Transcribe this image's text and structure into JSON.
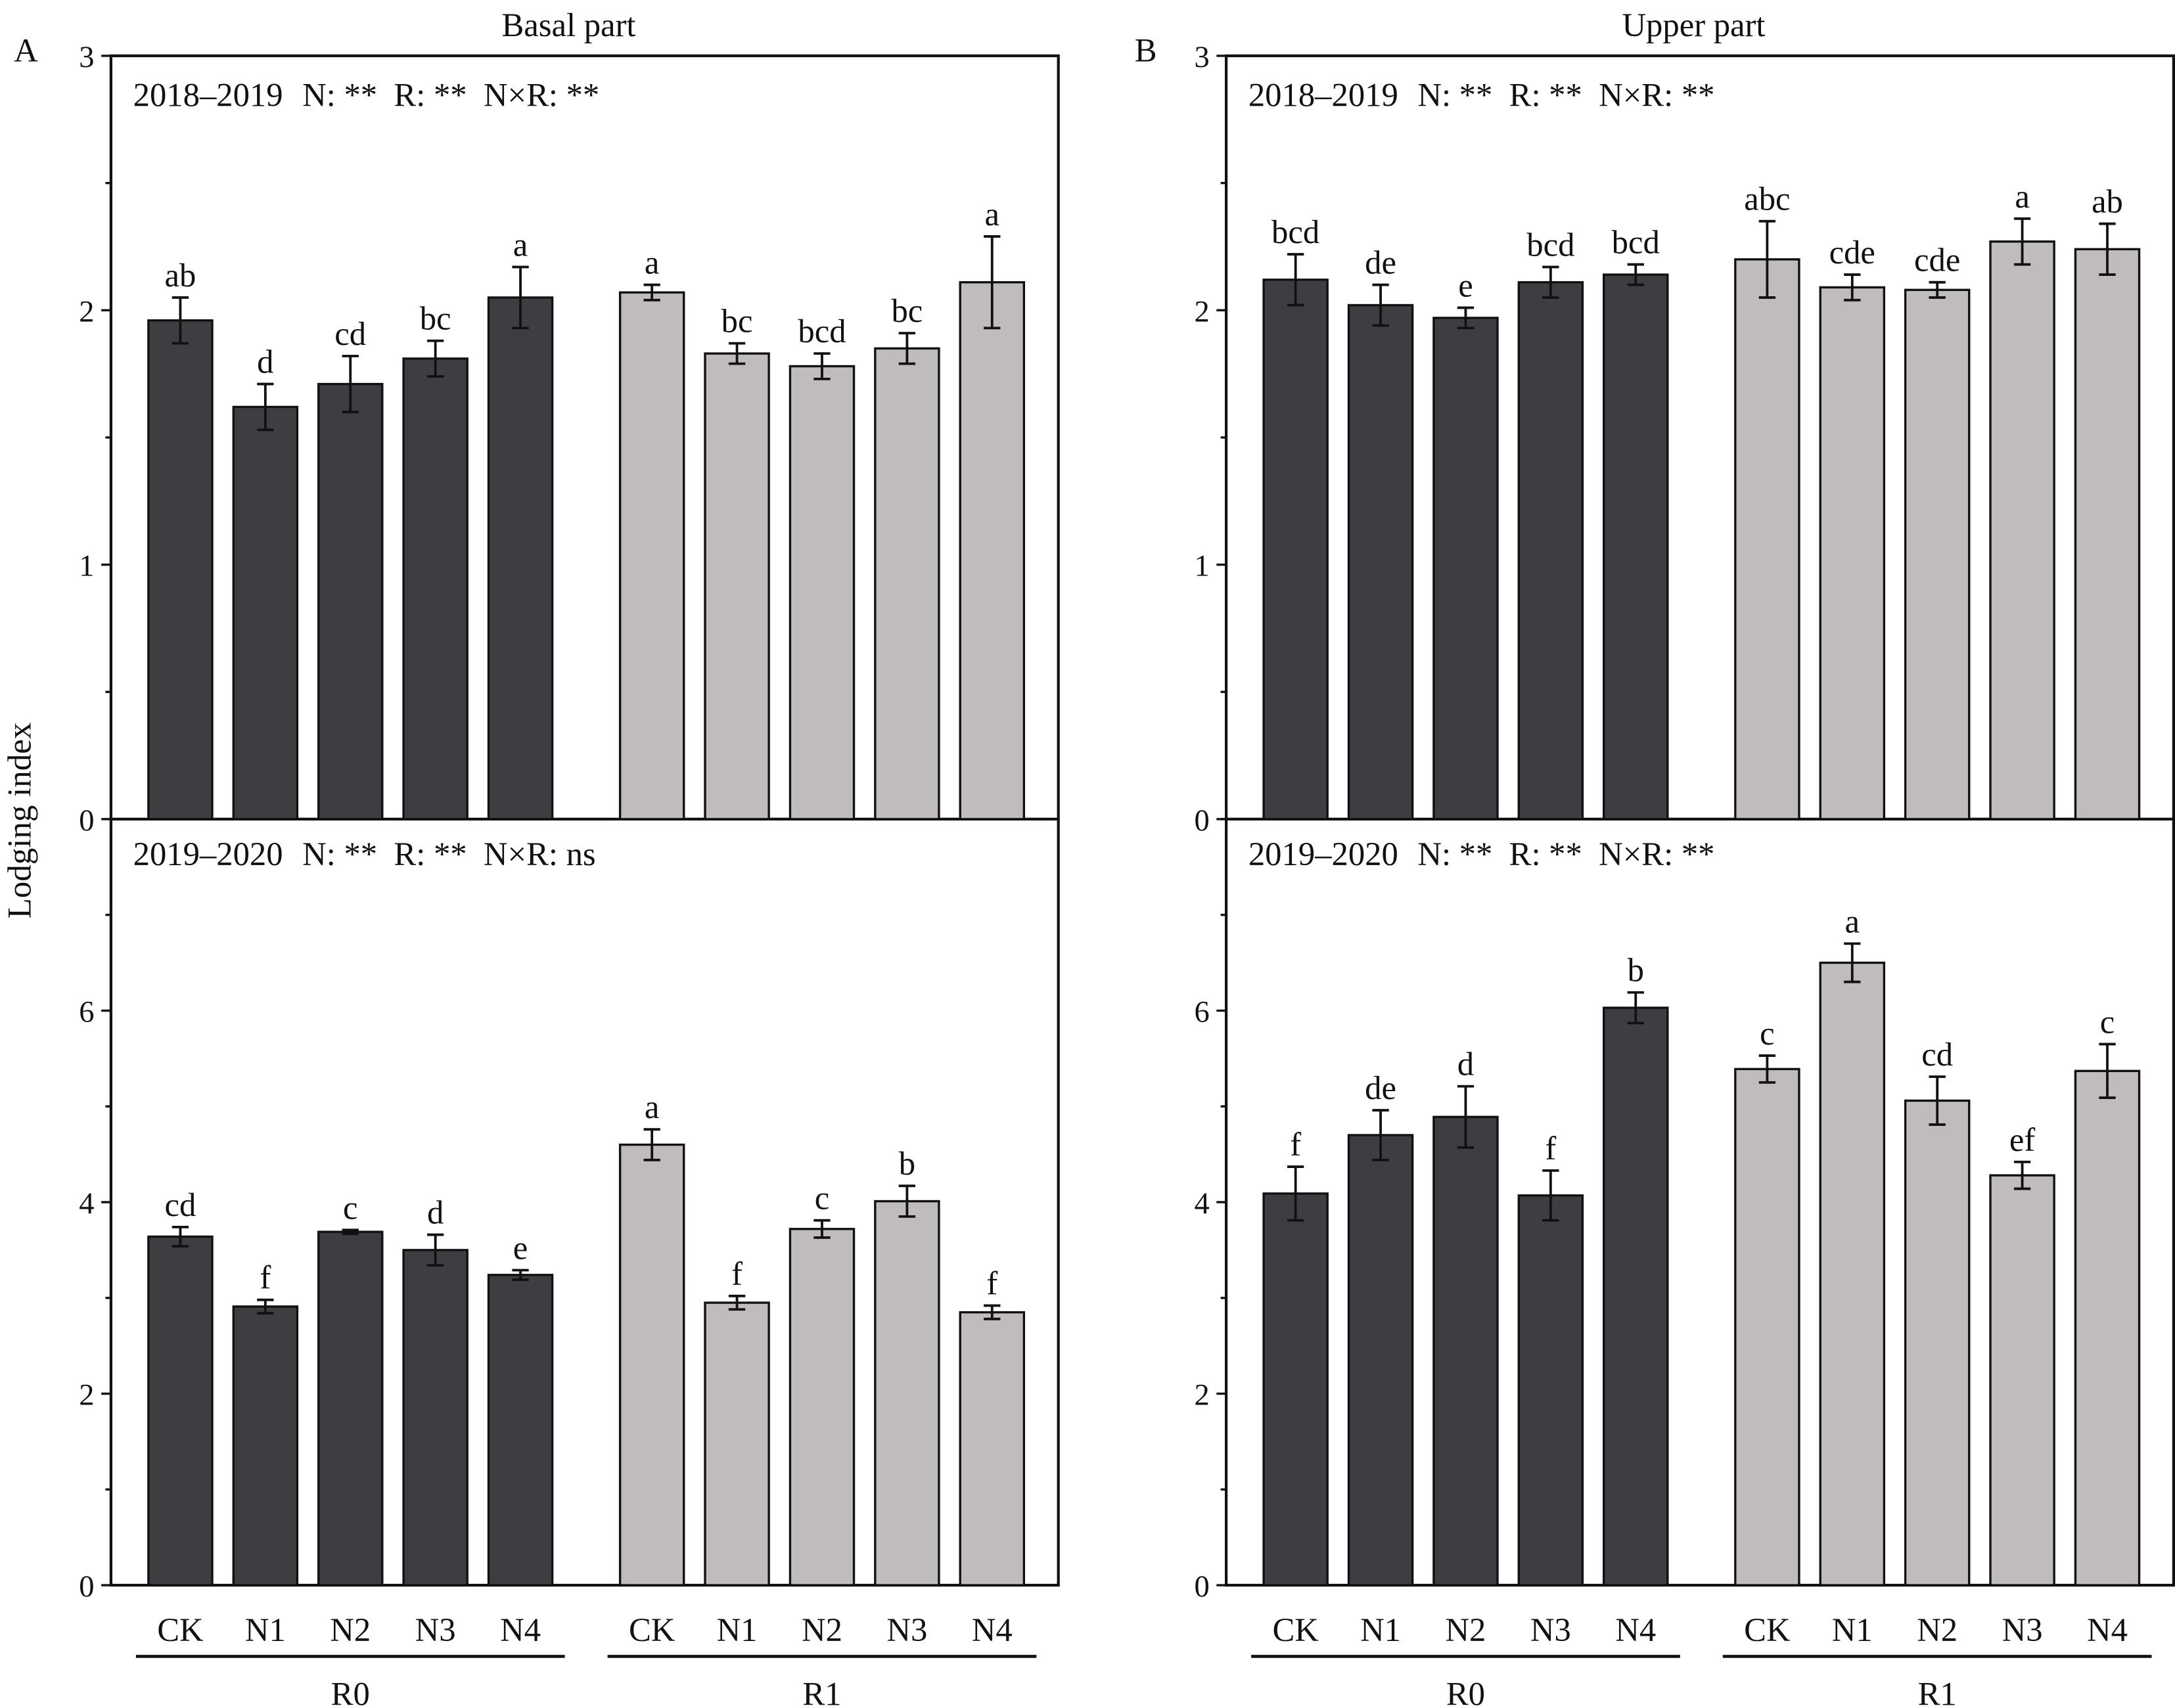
{
  "figure": {
    "y_axis_label": "Lodging index",
    "colors": {
      "R0": "#3f3d41",
      "R1": "#c0bbbf",
      "axis": "#111111"
    }
  },
  "chart_data": [
    {
      "id": "A",
      "type": "bar",
      "panel_letter": "A",
      "title": "Basal part",
      "ylabel": "Lodging index",
      "groups": [
        {
          "name": "R0",
          "categories": [
            "CK",
            "N1",
            "N2",
            "N3",
            "N4"
          ]
        },
        {
          "name": "R1",
          "categories": [
            "CK",
            "N1",
            "N2",
            "N3",
            "N4"
          ]
        }
      ],
      "subplots": [
        {
          "year": "2018–2019",
          "stats": "N: **  R: **  N×R: **",
          "ylim": [
            0,
            3
          ],
          "major_ticks": [
            0,
            1,
            2,
            3
          ],
          "series": [
            {
              "name": "R0",
              "values": [
                1.96,
                1.62,
                1.71,
                1.81,
                2.05
              ],
              "errors": [
                0.09,
                0.09,
                0.11,
                0.07,
                0.12
              ],
              "letters": [
                "ab",
                "d",
                "cd",
                "bc",
                "a"
              ]
            },
            {
              "name": "R1",
              "values": [
                2.07,
                1.83,
                1.78,
                1.85,
                2.11
              ],
              "errors": [
                0.03,
                0.04,
                0.05,
                0.06,
                0.18
              ],
              "letters": [
                "a",
                "bc",
                "bcd",
                "bc",
                "a"
              ]
            }
          ]
        },
        {
          "year": "2019–2020",
          "stats": "N: **  R: **  N×R: ns",
          "ylim": [
            0,
            8
          ],
          "major_ticks": [
            0,
            2,
            4,
            6
          ],
          "series": [
            {
              "name": "R0",
              "values": [
                3.64,
                2.91,
                3.69,
                3.5,
                3.24
              ],
              "errors": [
                0.1,
                0.07,
                0.02,
                0.16,
                0.05
              ],
              "letters": [
                "cd",
                "f",
                "c",
                "d",
                "e"
              ]
            },
            {
              "name": "R1",
              "values": [
                4.6,
                2.95,
                3.72,
                4.01,
                2.85
              ],
              "errors": [
                0.16,
                0.07,
                0.09,
                0.16,
                0.07
              ],
              "letters": [
                "a",
                "f",
                "c",
                "b",
                "f"
              ]
            }
          ]
        }
      ]
    },
    {
      "id": "B",
      "type": "bar",
      "panel_letter": "B",
      "title": "Upper part",
      "ylabel": "",
      "groups": [
        {
          "name": "R0",
          "categories": [
            "CK",
            "N1",
            "N2",
            "N3",
            "N4"
          ]
        },
        {
          "name": "R1",
          "categories": [
            "CK",
            "N1",
            "N2",
            "N3",
            "N4"
          ]
        }
      ],
      "subplots": [
        {
          "year": "2018–2019",
          "stats": "N: **  R: **  N×R: **",
          "ylim": [
            0,
            3
          ],
          "major_ticks": [
            0,
            1,
            2,
            3
          ],
          "series": [
            {
              "name": "R0",
              "values": [
                2.12,
                2.02,
                1.97,
                2.11,
                2.14
              ],
              "errors": [
                0.1,
                0.08,
                0.04,
                0.06,
                0.04
              ],
              "letters": [
                "bcd",
                "de",
                "e",
                "bcd",
                "bcd"
              ]
            },
            {
              "name": "R1",
              "values": [
                2.2,
                2.09,
                2.08,
                2.27,
                2.24
              ],
              "errors": [
                0.15,
                0.05,
                0.03,
                0.09,
                0.1
              ],
              "letters": [
                "abc",
                "cde",
                "cde",
                "a",
                "ab"
              ]
            }
          ]
        },
        {
          "year": "2019–2020",
          "stats": "N: **  R: **  N×R: **",
          "ylim": [
            0,
            8
          ],
          "major_ticks": [
            0,
            2,
            4,
            6
          ],
          "series": [
            {
              "name": "R0",
              "values": [
                4.09,
                4.7,
                4.89,
                4.07,
                6.03
              ],
              "errors": [
                0.28,
                0.26,
                0.32,
                0.26,
                0.16
              ],
              "letters": [
                "f",
                "de",
                "d",
                "f",
                "b"
              ]
            },
            {
              "name": "R1",
              "values": [
                5.39,
                6.5,
                5.06,
                4.28,
                5.37
              ],
              "errors": [
                0.14,
                0.2,
                0.25,
                0.14,
                0.28
              ],
              "letters": [
                "c",
                "a",
                "cd",
                "ef",
                "c"
              ]
            }
          ]
        }
      ]
    }
  ]
}
